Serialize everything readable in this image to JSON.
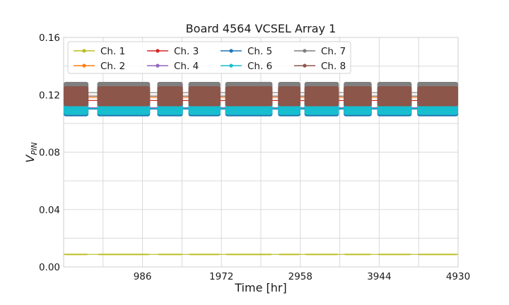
{
  "chart_data": {
    "type": "scatter",
    "title": "Board 4564 VCSEL Array 1",
    "xlabel": "Time [hr]",
    "ylabel_main": "V",
    "ylabel_sub": "PIN",
    "xlim": [
      0,
      4930
    ],
    "ylim": [
      0.0,
      0.16
    ],
    "xticks": [
      "986",
      "1972",
      "2958",
      "3944",
      "4930"
    ],
    "yticks": [
      "0.00",
      "0.04",
      "0.08",
      "0.12",
      "0.16"
    ],
    "grid": true,
    "legend_placement": "top-left",
    "legend_columns": 4,
    "x_segments": [
      [
        0,
        310
      ],
      [
        420,
        1080
      ],
      [
        1170,
        1490
      ],
      [
        1560,
        1960
      ],
      [
        2020,
        2610
      ],
      [
        2680,
        2960
      ],
      [
        3010,
        3440
      ],
      [
        3500,
        3850
      ],
      [
        3920,
        4350
      ],
      [
        4420,
        4930
      ]
    ],
    "series": [
      {
        "name": "Ch. 1",
        "color": "#bcbd22",
        "band": [
          0.0082,
          0.0092
        ]
      },
      {
        "name": "Ch. 2",
        "color": "#ff7f0e",
        "band": [
          0.114,
          0.122
        ]
      },
      {
        "name": "Ch. 3",
        "color": "#d62728",
        "band": [
          0.112,
          0.12
        ]
      },
      {
        "name": "Ch. 4",
        "color": "#9467bd",
        "band": [
          0.106,
          0.116
        ]
      },
      {
        "name": "Ch. 5",
        "color": "#1f77b4",
        "band": [
          0.105,
          0.115
        ]
      },
      {
        "name": "Ch. 6",
        "color": "#17becf",
        "band": [
          0.106,
          0.115
        ]
      },
      {
        "name": "Ch. 7",
        "color": "#7f7f7f",
        "band": [
          0.114,
          0.129
        ]
      },
      {
        "name": "Ch. 8",
        "color": "#8c564b",
        "band": [
          0.112,
          0.126
        ]
      }
    ]
  }
}
